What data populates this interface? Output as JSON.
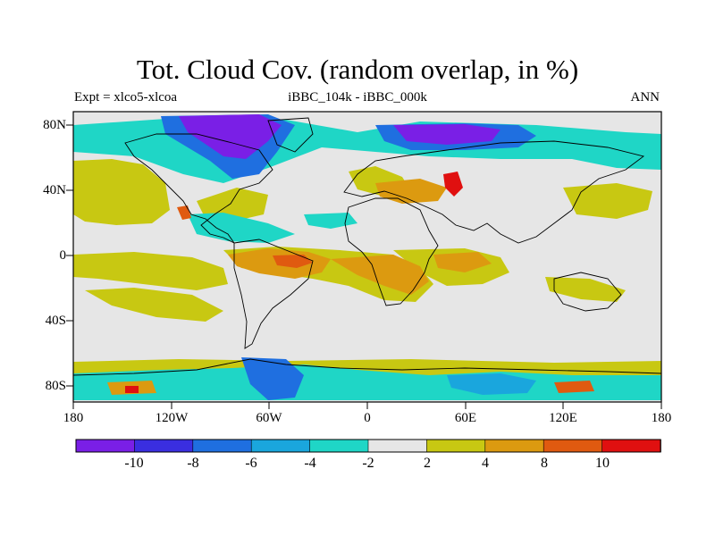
{
  "title": "Tot. Cloud Cov. (random overlap, in %)",
  "subtitle_left": "Expt = xlco5-xlcoa",
  "subtitle_center": "iBBC_104k - iBBC_000k",
  "subtitle_right": "ANN",
  "y_ticks": [
    "80N",
    "40N",
    "0",
    "40S",
    "80S"
  ],
  "x_ticks": [
    "180",
    "120W",
    "60W",
    "0",
    "60E",
    "120E",
    "180"
  ],
  "colorbar": {
    "labels": [
      "-10",
      "-8",
      "-6",
      "-4",
      "-2",
      "2",
      "4",
      "8",
      "10"
    ],
    "colors": [
      "#7a1fe6",
      "#3a2ee0",
      "#1f6fe0",
      "#1aa6dd",
      "#1fd6c6",
      "#e6e6e6",
      "#c8c812",
      "#dc9a10",
      "#e05a10",
      "#e01010"
    ]
  },
  "palette": {
    "neutral": "#e6e6e6",
    "light_pos": "#c8c812",
    "mid_pos": "#dc9a10",
    "strong_pos": "#e05a10",
    "max_pos": "#e01010",
    "light_neg": "#1fd6c6",
    "mid_neg": "#1aa6dd",
    "neg3": "#1f6fe0",
    "neg4": "#3a2ee0",
    "max_neg": "#7a1fe6"
  }
}
